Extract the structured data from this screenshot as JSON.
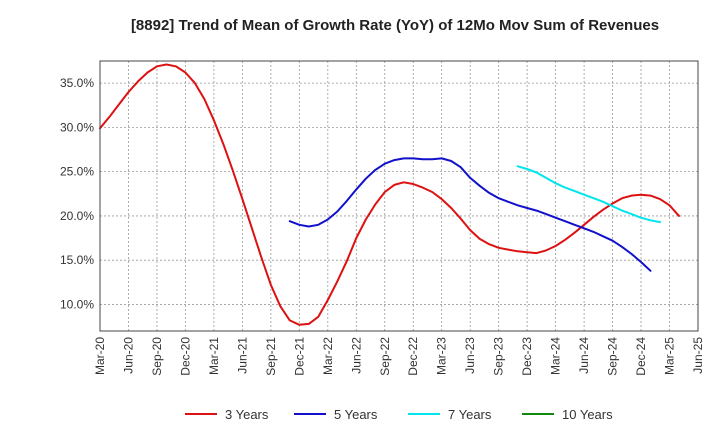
{
  "chart_data": {
    "type": "line",
    "title": "[8892]  Trend of Mean of Growth Rate (YoY) of 12Mo Mov Sum of Revenues",
    "xlabel": "",
    "ylabel": "",
    "ylim": [
      7.0,
      37.5
    ],
    "yticks": [
      10.0,
      15.0,
      20.0,
      25.0,
      30.0,
      35.0
    ],
    "ytick_labels": [
      "10.0%",
      "15.0%",
      "20.0%",
      "25.0%",
      "30.0%",
      "35.0%"
    ],
    "x_start": "Mar-20",
    "x_months": 63,
    "xtick_labels": [
      "Mar-20",
      "Jun-20",
      "Sep-20",
      "Dec-20",
      "Mar-21",
      "Jun-21",
      "Sep-21",
      "Dec-21",
      "Mar-22",
      "Jun-22",
      "Sep-22",
      "Dec-22",
      "Mar-23",
      "Jun-23",
      "Sep-23",
      "Dec-23",
      "Mar-24",
      "Jun-24",
      "Sep-24",
      "Dec-24",
      "Mar-25",
      "Jun-25"
    ],
    "grid": true,
    "legend_position": "bottom",
    "series": [
      {
        "name": "3 Years",
        "color": "#dd1111",
        "start_index": 0,
        "values": [
          29.9,
          31.2,
          32.6,
          34.0,
          35.2,
          36.2,
          36.9,
          37.1,
          36.9,
          36.2,
          35.0,
          33.2,
          30.8,
          28.1,
          25.1,
          21.9,
          18.6,
          15.3,
          12.2,
          9.8,
          8.2,
          7.7,
          7.8,
          8.6,
          10.5,
          12.6,
          14.9,
          17.5,
          19.6,
          21.3,
          22.7,
          23.5,
          23.8,
          23.6,
          23.2,
          22.7,
          21.9,
          20.9,
          19.7,
          18.4,
          17.4,
          16.8,
          16.4,
          16.2,
          16.0,
          15.9,
          15.8,
          16.1,
          16.6,
          17.3,
          18.1,
          19.0,
          19.9,
          20.7,
          21.4,
          22.0,
          22.3,
          22.4,
          22.3,
          21.9,
          21.2,
          20.0
        ]
      },
      {
        "name": "5 Years",
        "color": "#1111cc",
        "start_index": 20,
        "values": [
          19.4,
          19.0,
          18.8,
          19.0,
          19.6,
          20.5,
          21.7,
          23.0,
          24.2,
          25.2,
          25.9,
          26.3,
          26.5,
          26.5,
          26.4,
          26.4,
          26.5,
          26.2,
          25.5,
          24.3,
          23.4,
          22.6,
          22.0,
          21.6,
          21.2,
          20.9,
          20.6,
          20.2,
          19.8,
          19.4,
          19.0,
          18.6,
          18.2,
          17.7,
          17.2,
          16.5,
          15.7,
          14.8,
          13.8
        ]
      },
      {
        "name": "7 Years",
        "color": "#00e5ee",
        "start_index": 44,
        "values": [
          25.6,
          25.3,
          24.9,
          24.3,
          23.7,
          23.2,
          22.8,
          22.4,
          22.0,
          21.6,
          21.1,
          20.6,
          20.2,
          19.8,
          19.5,
          19.3
        ]
      },
      {
        "name": "10 Years",
        "color": "#118811",
        "start_index": 0,
        "values": []
      }
    ]
  }
}
